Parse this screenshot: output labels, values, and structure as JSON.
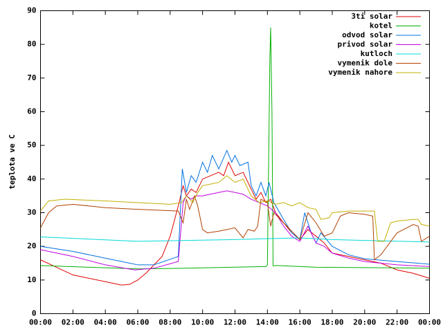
{
  "chart_data": {
    "type": "line",
    "y_label": "teplota ve C",
    "xlim": [
      0,
      24
    ],
    "xticks": [
      {
        "value": 0,
        "label": "00:00"
      },
      {
        "value": 2,
        "label": "02:00"
      },
      {
        "value": 4,
        "label": "04:00"
      },
      {
        "value": 6,
        "label": "06:00"
      },
      {
        "value": 8,
        "label": "08:00"
      },
      {
        "value": 10,
        "label": "10:00"
      },
      {
        "value": 12,
        "label": "12:00"
      },
      {
        "value": 14,
        "label": "14:00"
      },
      {
        "value": 16,
        "label": "16:00"
      },
      {
        "value": 18,
        "label": "18:00"
      },
      {
        "value": 20,
        "label": "20:00"
      },
      {
        "value": 22,
        "label": "22:00"
      },
      {
        "value": 24,
        "label": "00:00"
      }
    ],
    "ylim": [
      0,
      90
    ],
    "yticks": [
      0,
      10,
      20,
      30,
      40,
      50,
      60,
      70,
      80,
      90
    ],
    "legend": "top-right",
    "series": [
      {
        "name": "3ti solar",
        "color": "#e00000",
        "x": [
          0,
          2,
          4,
          5,
          5.5,
          6,
          6.5,
          7.5,
          8,
          8.5,
          8.8,
          9,
          9.3,
          9.6,
          10,
          10.5,
          11,
          11.3,
          11.6,
          12,
          12.5,
          13,
          13.3,
          13.6,
          13.9,
          14.2,
          14.5,
          15,
          15.5,
          16,
          16.5,
          17,
          17.5,
          18,
          19,
          20,
          21,
          22,
          23,
          24
        ],
        "values": [
          16,
          11.5,
          9.5,
          8.5,
          8.7,
          10,
          12,
          17,
          23,
          32,
          38,
          35,
          37,
          36,
          40,
          41,
          42,
          41,
          45,
          41,
          42,
          37,
          34,
          36,
          33,
          34,
          30,
          27,
          24,
          22,
          25,
          23,
          21,
          18,
          17,
          16,
          15,
          13,
          12,
          10.5
        ]
      },
      {
        "name": "kotel",
        "color": "#00b000",
        "x": [
          0,
          6,
          9,
          13.9,
          14.0,
          14.1,
          14.15,
          14.2,
          14.28,
          14.35,
          14.6,
          17,
          24
        ],
        "values": [
          14.3,
          13.3,
          13.5,
          14,
          14.5,
          55,
          76,
          85,
          60,
          14.2,
          14.3,
          13.8,
          13.5
        ]
      },
      {
        "name": "odvod solar",
        "color": "#0070e0",
        "x": [
          0,
          2,
          4,
          6,
          7,
          8.5,
          8.75,
          9,
          9.3,
          9.6,
          10,
          10.3,
          10.6,
          11,
          11.5,
          11.8,
          12,
          12.3,
          12.8,
          13,
          13.3,
          13.6,
          13.9,
          14.1,
          14.4,
          15,
          15.5,
          16,
          16.3,
          16.7,
          17,
          17.3,
          18,
          19,
          20,
          22,
          24
        ],
        "values": [
          20,
          18.5,
          16.5,
          14.5,
          14.5,
          17,
          43,
          36,
          41,
          39,
          45,
          42,
          47,
          43,
          48.5,
          45,
          47,
          44,
          45,
          38,
          35,
          39,
          35,
          39,
          33,
          28,
          24,
          22,
          30,
          24,
          21,
          24,
          20,
          17.5,
          16.3,
          15.5,
          14.7
        ]
      },
      {
        "name": "privod solar",
        "color": "#c000e0",
        "x": [
          0,
          2,
          4,
          5.8,
          7,
          8.5,
          8.8,
          9,
          9.3,
          9.6,
          10,
          11,
          11.5,
          12,
          12.5,
          13,
          13.5,
          14,
          14.5,
          15,
          15.5,
          16,
          16.5,
          17,
          17.5,
          18,
          19,
          20,
          22,
          24
        ],
        "values": [
          19,
          17,
          14.5,
          13,
          13.5,
          15.5,
          33,
          35,
          34,
          35,
          35,
          36,
          36.5,
          36,
          35.5,
          34,
          33,
          32,
          30,
          26,
          23,
          21.5,
          26,
          21,
          20,
          18,
          16.5,
          15.5,
          14.5,
          14
        ]
      },
      {
        "name": "kutloch",
        "color": "#00d8d8",
        "x": [
          0,
          6,
          12,
          14,
          16,
          18,
          24
        ],
        "values": [
          22.8,
          21.5,
          22,
          22.3,
          22.5,
          22,
          21.3
        ]
      },
      {
        "name": "vymenik dole",
        "color": "#b04000",
        "x": [
          0,
          0.5,
          1,
          2,
          4,
          6,
          8.5,
          8.8,
          9,
          9.2,
          9.5,
          9.7,
          10,
          10.3,
          11,
          12,
          12.5,
          12.8,
          13.2,
          13.4,
          13.6,
          14,
          14.2,
          14.4,
          15,
          16,
          16.5,
          17,
          17.5,
          18,
          18.5,
          19,
          20,
          20.5,
          20.6,
          21,
          22,
          23,
          23.3,
          23.5,
          24
        ],
        "values": [
          25.5,
          30,
          32,
          32.5,
          31.5,
          31,
          30.5,
          27,
          34,
          31,
          35,
          32,
          25,
          24,
          24.5,
          25.5,
          22.5,
          25,
          24.5,
          26,
          34,
          33,
          26,
          30,
          27,
          22,
          30,
          27,
          23,
          24,
          29,
          30,
          29.5,
          29,
          16,
          17.5,
          24,
          26.5,
          26,
          21.5,
          23
        ]
      },
      {
        "name": "vymenik nahore",
        "color": "#c0b000",
        "x": [
          0,
          0.5,
          1.5,
          4,
          8,
          8.7,
          9,
          9.4,
          9.7,
          10,
          10.5,
          11,
          11.5,
          12,
          12.5,
          13,
          13.5,
          14,
          14.5,
          15,
          15.5,
          16,
          16.5,
          17,
          17.3,
          17.8,
          18,
          19,
          20,
          20.6,
          20.8,
          21.2,
          21.6,
          22,
          23,
          23.3,
          23.5,
          24
        ],
        "values": [
          30.5,
          33.5,
          34,
          33.5,
          32.5,
          33,
          35,
          33,
          36,
          38,
          38.5,
          39,
          41,
          39,
          40,
          35,
          33,
          33.5,
          32.5,
          33,
          32,
          33,
          31.5,
          31,
          28,
          28.5,
          30,
          30.5,
          30.5,
          30.5,
          21.5,
          21.5,
          27,
          27.5,
          28,
          28,
          26.5,
          26
        ]
      }
    ]
  }
}
